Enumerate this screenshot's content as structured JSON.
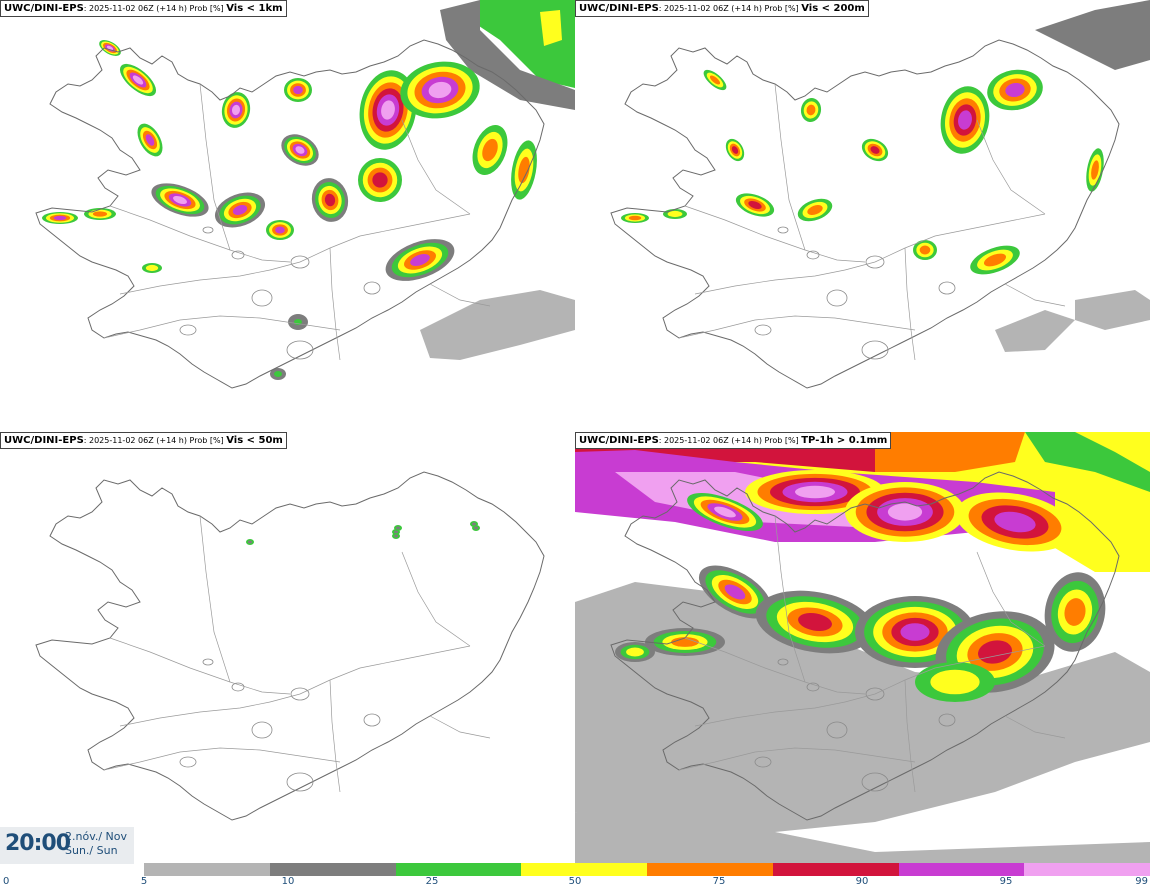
{
  "panels": [
    {
      "model": "UWC/DINI-EPS",
      "meta": ": 2025-11-02 06Z (+14 h) Prob [%] ",
      "field": "Vis < 1km"
    },
    {
      "model": "UWC/DINI-EPS",
      "meta": ": 2025-11-02 06Z (+14 h) Prob [%] ",
      "field": "Vis < 200m"
    },
    {
      "model": "UWC/DINI-EPS",
      "meta": ": 2025-11-02 06Z (+14 h) Prob [%] ",
      "field": "Vis < 50m"
    },
    {
      "model": "UWC/DINI-EPS",
      "meta": ": 2025-11-02 06Z (+14 h) Prob [%] ",
      "field": "TP-1h > 0.1mm"
    }
  ],
  "valid_time": {
    "time": "20:00",
    "date_line1": "2.nóv./ Nov",
    "date_line2": "Sun./ Sun"
  },
  "colorbar": {
    "ticks": [
      "0",
      "5",
      "10",
      "25",
      "50",
      "75",
      "90",
      "95",
      "99"
    ],
    "colors": [
      "#ffffff",
      "#b4b4b4",
      "#7d7d7d",
      "#3cc83c",
      "#ffff1e",
      "#ff7d00",
      "#d2143c",
      "#c83cd2",
      "#f0a0f0"
    ]
  }
}
